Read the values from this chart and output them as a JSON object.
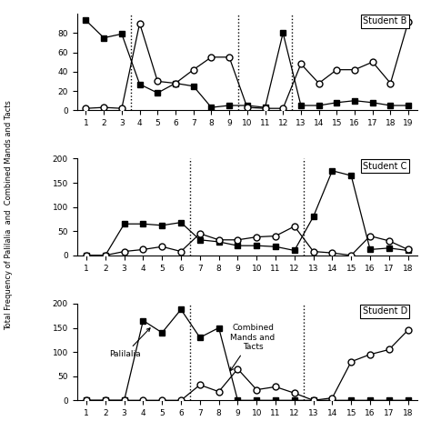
{
  "studentB": {
    "label": "Student B",
    "phase_dividers": [
      3.5,
      9.5,
      12.5
    ],
    "palilalia": {
      "x": [
        1,
        2,
        3,
        4,
        5,
        6,
        7,
        8,
        9,
        10,
        11,
        12,
        13,
        14,
        15,
        16,
        17,
        18,
        19
      ],
      "y": [
        93,
        75,
        79,
        27,
        18,
        28,
        25,
        3,
        5,
        5,
        3,
        80,
        5,
        5,
        8,
        10,
        8,
        5,
        5
      ]
    },
    "combined": {
      "x": [
        1,
        2,
        3,
        4,
        5,
        6,
        7,
        8,
        9,
        10,
        11,
        12,
        13,
        14,
        15,
        16,
        17,
        18,
        19
      ],
      "y": [
        2,
        3,
        2,
        90,
        30,
        28,
        42,
        55,
        55,
        3,
        2,
        2,
        48,
        28,
        42,
        42,
        50,
        28,
        92
      ]
    },
    "ylim": [
      0,
      100
    ],
    "yticks": [
      0,
      20,
      40,
      60,
      80
    ]
  },
  "studentC": {
    "label": "Student C",
    "phase_dividers": [
      6.5,
      12.5
    ],
    "palilalia": {
      "x": [
        1,
        2,
        3,
        4,
        5,
        6,
        7,
        8,
        9,
        10,
        11,
        12,
        13,
        14,
        15,
        16,
        17,
        18
      ],
      "y": [
        0,
        0,
        65,
        65,
        62,
        68,
        32,
        28,
        20,
        20,
        18,
        10,
        80,
        175,
        165,
        12,
        15,
        10
      ]
    },
    "combined": {
      "x": [
        1,
        2,
        3,
        4,
        5,
        6,
        7,
        8,
        9,
        10,
        11,
        12,
        13,
        14,
        15,
        16,
        17,
        18
      ],
      "y": [
        0,
        0,
        8,
        12,
        18,
        8,
        45,
        32,
        32,
        38,
        40,
        60,
        8,
        5,
        0,
        40,
        30,
        12
      ]
    },
    "ylim": [
      0,
      200
    ],
    "yticks": [
      0,
      50,
      100,
      150,
      200
    ]
  },
  "studentD": {
    "label": "Student D",
    "phase_dividers": [
      6.5,
      12.5
    ],
    "palilalia": {
      "x": [
        1,
        2,
        3,
        4,
        5,
        6,
        7,
        8,
        9,
        10,
        11,
        12,
        13,
        14,
        15,
        16,
        17,
        18
      ],
      "y": [
        0,
        0,
        0,
        165,
        140,
        188,
        130,
        150,
        0,
        0,
        0,
        0,
        0,
        0,
        0,
        0,
        0,
        0
      ]
    },
    "combined": {
      "x": [
        1,
        2,
        3,
        4,
        5,
        6,
        7,
        8,
        9,
        10,
        11,
        12,
        13,
        14,
        15,
        16,
        17,
        18
      ],
      "y": [
        0,
        0,
        0,
        0,
        0,
        0,
        32,
        18,
        65,
        22,
        28,
        15,
        0,
        5,
        80,
        95,
        105,
        145
      ]
    },
    "ylim": [
      0,
      200
    ],
    "yticks": [
      0,
      50,
      100,
      150,
      200
    ]
  },
  "ylabel": "Total Frequency of Palilalia  and  Combined Mands and Tacts"
}
